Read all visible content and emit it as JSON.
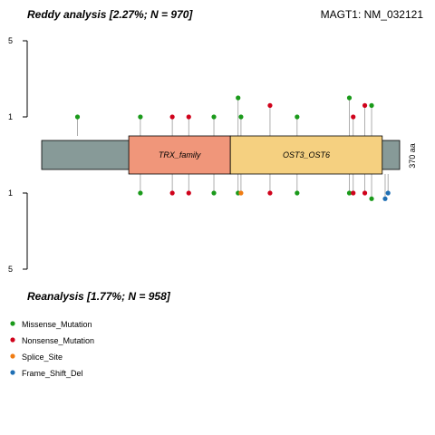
{
  "chart_data": {
    "type": "lollipop",
    "title_top": "Reddy analysis [2.27%; N = 970]",
    "title_bottom": "Reanalysis [1.77%; N = 958]",
    "gene_label": "MAGT1: NM_032121",
    "protein_length": 370,
    "length_label": "370 aa",
    "y_ticks_top": [
      "5",
      "1"
    ],
    "y_ticks_bottom": [
      "1",
      "5"
    ],
    "domains": [
      {
        "name": "TRX_family",
        "start": 90,
        "end": 195,
        "color": "#f0967a"
      },
      {
        "name": "OST3_OST6",
        "start": 195,
        "end": 352,
        "color": "#f5d080"
      }
    ],
    "backbone_color": "#879a98",
    "mutation_types": [
      {
        "name": "Missense_Mutation",
        "color": "#1a9a1a"
      },
      {
        "name": "Nonsense_Mutation",
        "color": "#d0021b"
      },
      {
        "name": "Splice_Site",
        "color": "#f07c13"
      },
      {
        "name": "Frame_Shift_Del",
        "color": "#1f6fb4"
      }
    ],
    "top_mutations": [
      {
        "pos": 37,
        "type": "Missense_Mutation",
        "count": 1
      },
      {
        "pos": 102,
        "type": "Missense_Mutation",
        "count": 1
      },
      {
        "pos": 135,
        "type": "Nonsense_Mutation",
        "count": 1
      },
      {
        "pos": 152,
        "type": "Nonsense_Mutation",
        "count": 1
      },
      {
        "pos": 178,
        "type": "Missense_Mutation",
        "count": 1
      },
      {
        "pos": 203,
        "type": "Missense_Mutation",
        "count": 2
      },
      {
        "pos": 206,
        "type": "Missense_Mutation",
        "count": 1
      },
      {
        "pos": 236,
        "type": "Nonsense_Mutation",
        "count": 1.6
      },
      {
        "pos": 264,
        "type": "Missense_Mutation",
        "count": 1
      },
      {
        "pos": 318,
        "type": "Missense_Mutation",
        "count": 2
      },
      {
        "pos": 322,
        "type": "Nonsense_Mutation",
        "count": 1
      },
      {
        "pos": 334,
        "type": "Nonsense_Mutation",
        "count": 1.6
      },
      {
        "pos": 341,
        "type": "Missense_Mutation",
        "count": 1.6
      }
    ],
    "bottom_mutations": [
      {
        "pos": 102,
        "type": "Missense_Mutation",
        "count": 1
      },
      {
        "pos": 135,
        "type": "Nonsense_Mutation",
        "count": 1
      },
      {
        "pos": 152,
        "type": "Nonsense_Mutation",
        "count": 1
      },
      {
        "pos": 178,
        "type": "Missense_Mutation",
        "count": 1
      },
      {
        "pos": 203,
        "type": "Missense_Mutation",
        "count": 1
      },
      {
        "pos": 206,
        "type": "Splice_Site",
        "count": 1
      },
      {
        "pos": 236,
        "type": "Nonsense_Mutation",
        "count": 1
      },
      {
        "pos": 264,
        "type": "Missense_Mutation",
        "count": 1
      },
      {
        "pos": 318,
        "type": "Missense_Mutation",
        "count": 1
      },
      {
        "pos": 322,
        "type": "Nonsense_Mutation",
        "count": 1
      },
      {
        "pos": 334,
        "type": "Nonsense_Mutation",
        "count": 1
      },
      {
        "pos": 341,
        "type": "Missense_Mutation",
        "count": 1.3
      },
      {
        "pos": 355,
        "type": "Frame_Shift_Del",
        "count": 1.3
      },
      {
        "pos": 358,
        "type": "Frame_Shift_Del",
        "count": 1
      }
    ]
  }
}
